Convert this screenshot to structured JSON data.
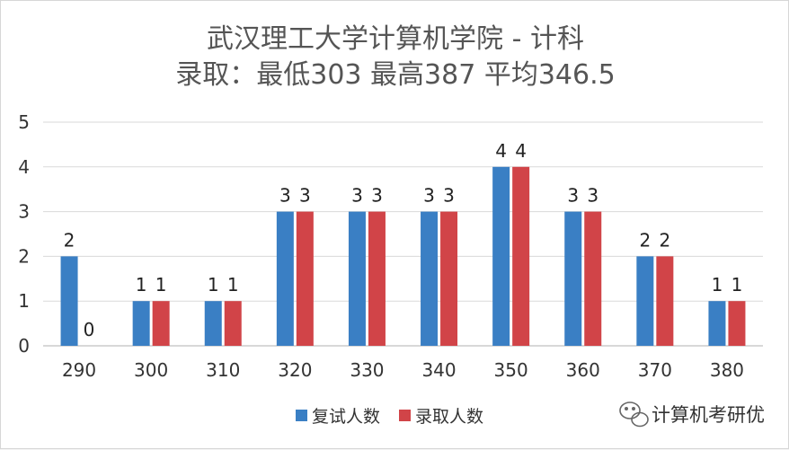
{
  "chart_data": {
    "type": "bar",
    "title": "武汉理工大学计算机学院 - 计科",
    "subtitle": "录取：最低303 最高387 平均346.5",
    "categories": [
      "290",
      "300",
      "310",
      "320",
      "330",
      "340",
      "350",
      "360",
      "370",
      "380"
    ],
    "series": [
      {
        "name": "复试人数",
        "color": "#3a7fc4",
        "values": [
          2,
          1,
          1,
          3,
          3,
          3,
          4,
          3,
          2,
          1
        ]
      },
      {
        "name": "录取人数",
        "color": "#d14448",
        "values": [
          0,
          1,
          1,
          3,
          3,
          3,
          4,
          3,
          2,
          1
        ]
      }
    ],
    "ylim": [
      0,
      5
    ],
    "yticks": [
      0,
      1,
      2,
      3,
      4,
      5
    ],
    "grid": true,
    "legend": "bottom"
  },
  "watermark": {
    "text": "计算机考研优",
    "icon": "wechat-icon"
  }
}
